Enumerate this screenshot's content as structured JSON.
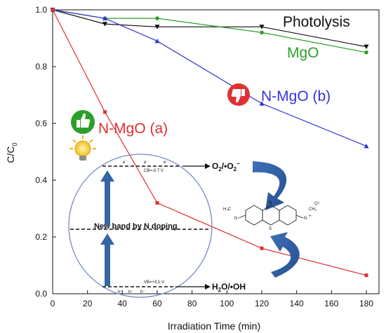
{
  "chart_data": {
    "type": "line",
    "xlabel": "Irradiation Time (min)",
    "ylabel_main": "C/C",
    "ylabel_sub": "0",
    "xlim": [
      0,
      180
    ],
    "ylim": [
      0,
      1.0
    ],
    "x_ticks": [
      "0",
      "20",
      "40",
      "60",
      "80",
      "100",
      "120",
      "140",
      "160",
      "180"
    ],
    "y_ticks": [
      "0.0",
      "0.2",
      "0.4",
      "0.6",
      "0.8",
      "1.0"
    ],
    "x": [
      0,
      30,
      60,
      120,
      180
    ],
    "series": [
      {
        "name": "Photolysis",
        "color": "#111111",
        "marker": "triangle-down",
        "values": [
          1.0,
          0.95,
          0.94,
          0.94,
          0.87
        ]
      },
      {
        "name": "MgO",
        "color": "#2aa02a",
        "marker": "circle",
        "values": [
          1.0,
          0.97,
          0.97,
          0.92,
          0.85
        ]
      },
      {
        "name": "N-MgO (b)",
        "color": "#3535d8",
        "marker": "triangle-up",
        "values": [
          1.0,
          0.97,
          0.89,
          0.67,
          0.52
        ]
      },
      {
        "name": "N-MgO (a)",
        "color": "#e03030",
        "marker": "square",
        "values": [
          1.0,
          0.64,
          0.32,
          0.16,
          0.065
        ]
      }
    ],
    "grid": false,
    "legend": "inline labels near curves"
  },
  "inset": {
    "cb_label": "CB=-0.7 V",
    "vb_label": "VB=+3.1 V",
    "band_label": "New band by N doping",
    "product_top_1": "O",
    "product_top_1_sub": "2",
    "product_top_sep": "/•O",
    "product_top_2_sub": "2",
    "product_top_2_sup": "−",
    "product_bottom_1": "H",
    "product_bottom_1_sub": "2",
    "product_bottom_2": "O/•OH",
    "electron": "e⁻",
    "hole": "h⁺",
    "mb_n_top": "N",
    "mb_s": "S",
    "mb_left_group": "H₃C",
    "mb_right_group": "CH₃",
    "mb_n_left": "N",
    "mb_n_right": "N",
    "mb_charge": "+",
    "mb_counterion": "Cl⁻"
  },
  "badges": {
    "good": "thumbs-up-icon",
    "bad": "thumbs-down-icon",
    "good_color": "#2aa02a",
    "bad_color": "#e03030"
  }
}
